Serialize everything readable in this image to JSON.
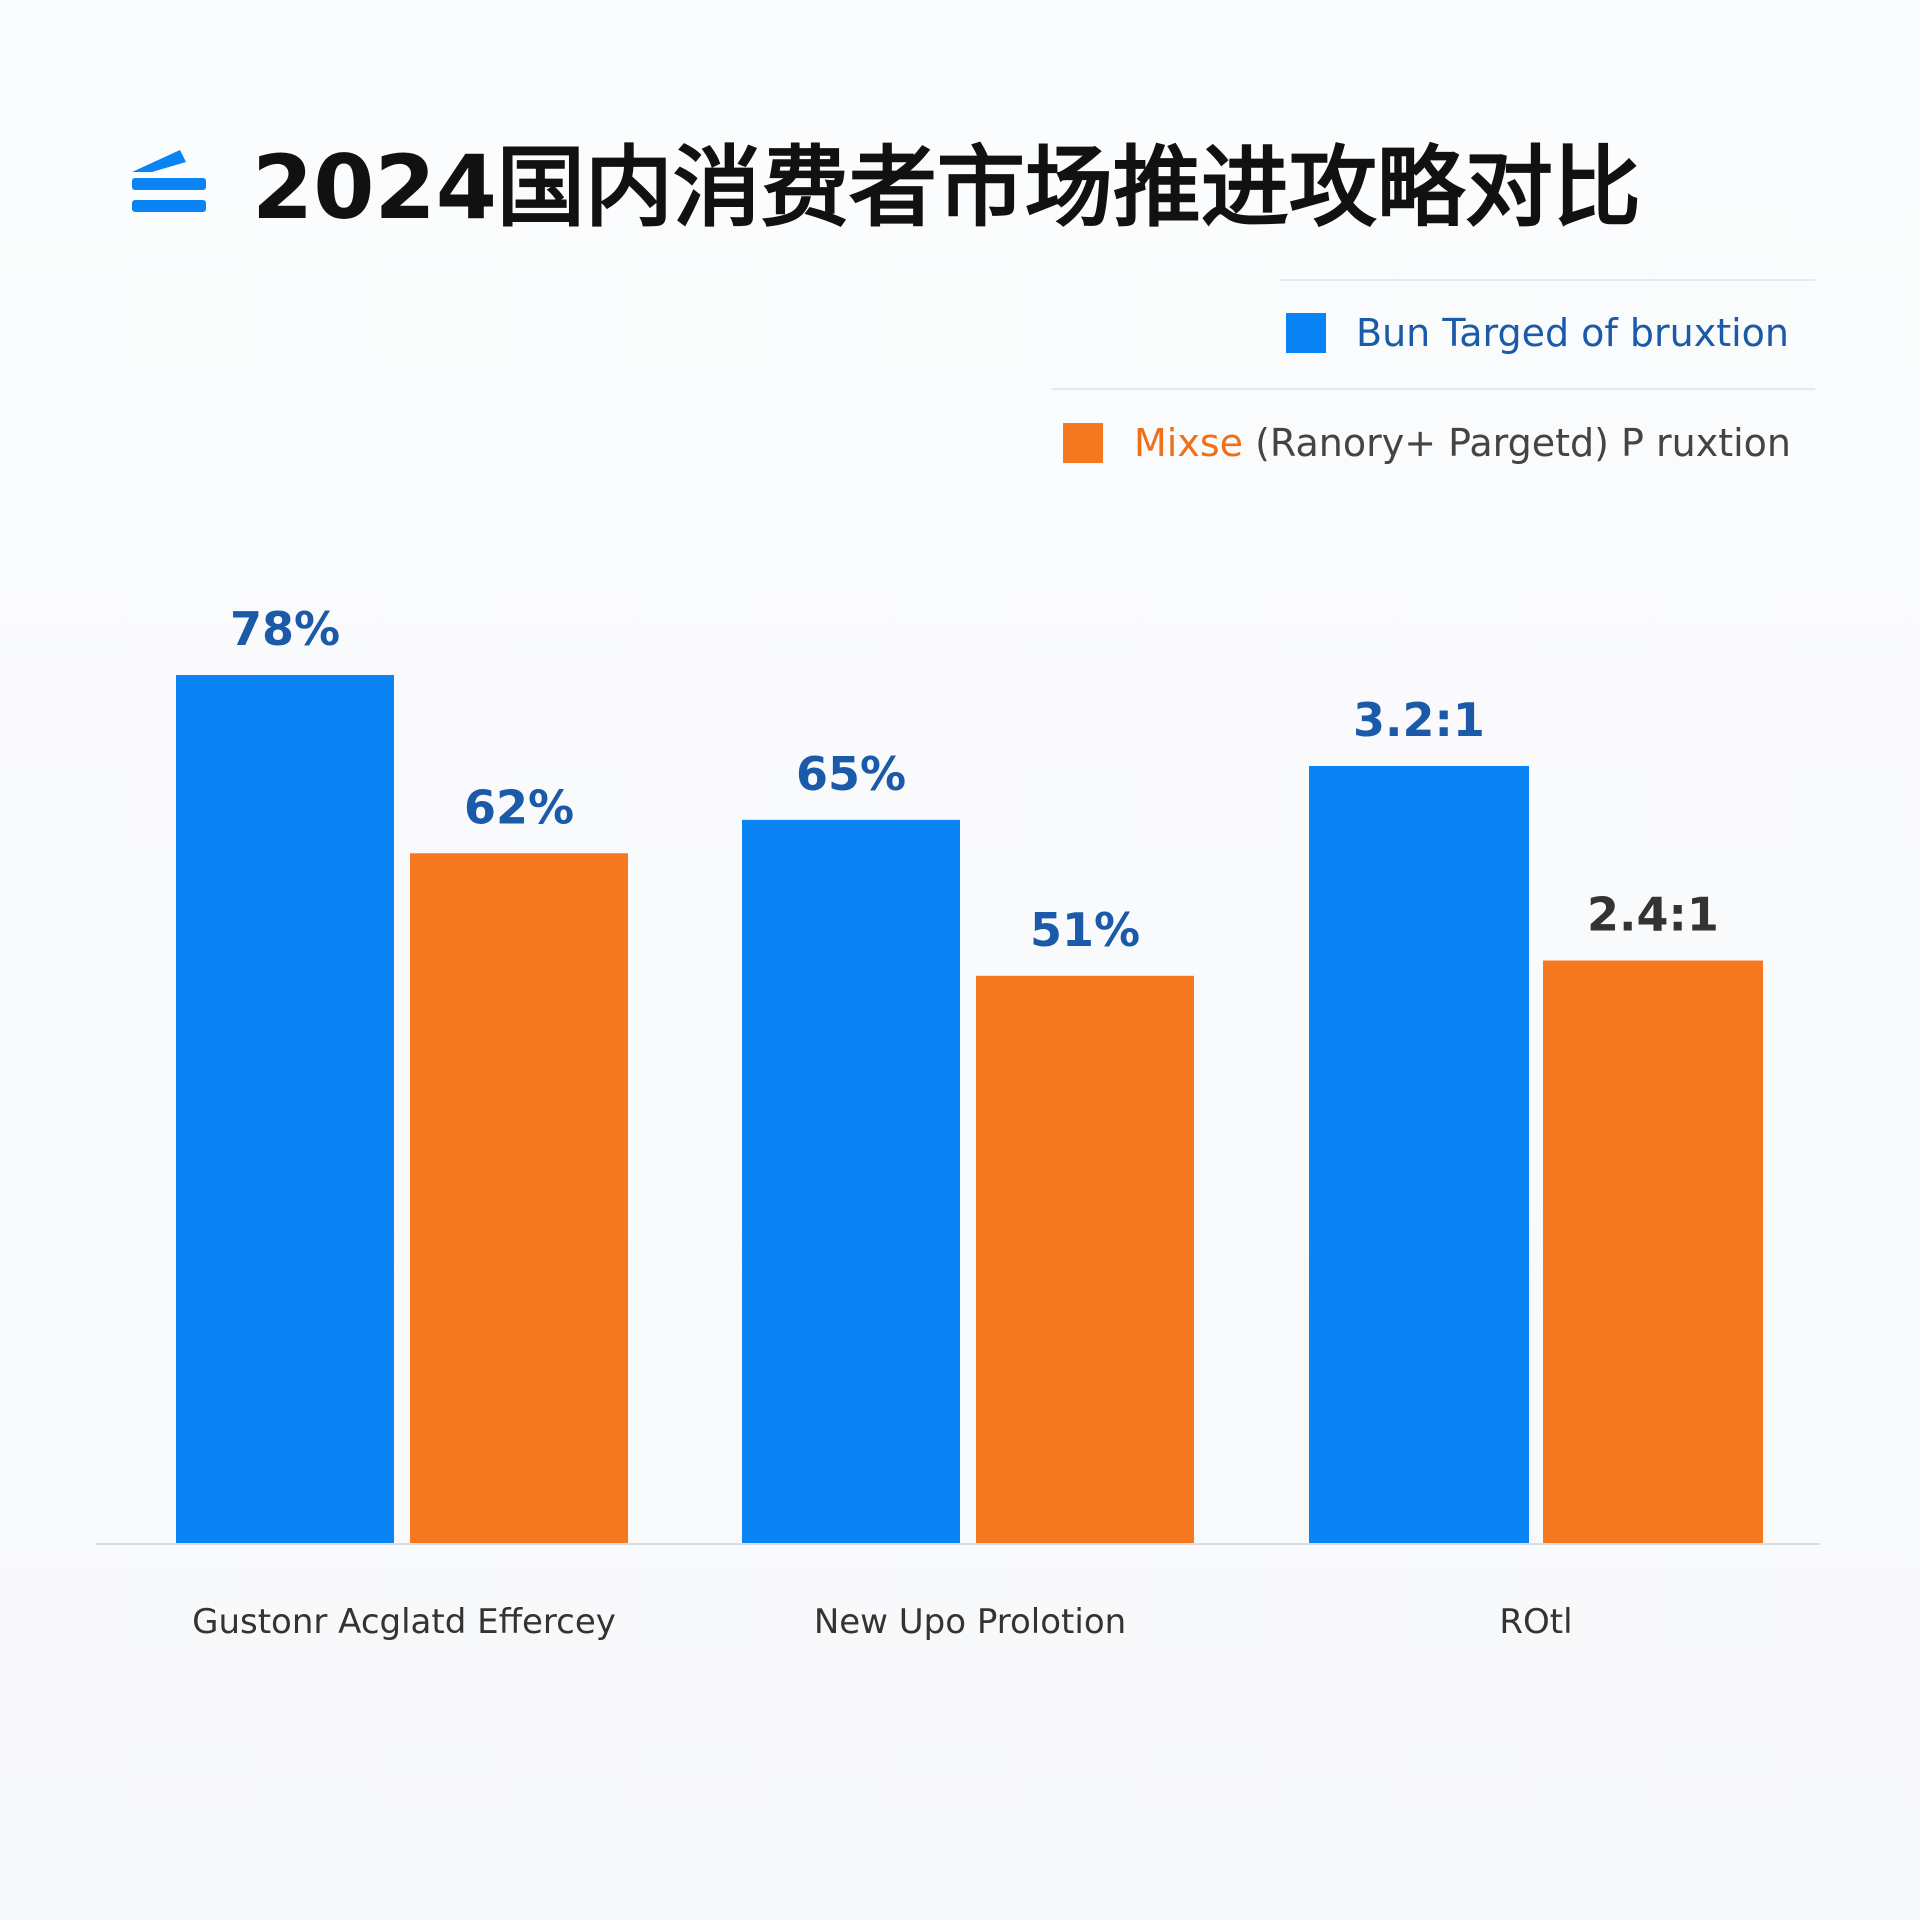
{
  "colors": {
    "series_a": "#0a84f5",
    "series_b": "#f5781e",
    "label_blue": "#1a5aa8",
    "label_dark": "#333333",
    "legend_b_text": "#f07018",
    "legend_b_rest": "#444444",
    "baseline": "#d9dde2",
    "legend_divider": "#e6e9ed"
  },
  "chart_data": {
    "type": "bar",
    "title": "2024国内消费者市场推进攻略对比",
    "title_icon": "layers-icon",
    "categories": [
      "Gustonr Acglatd Effercey",
      "New Upo Prolotion",
      "ROtl"
    ],
    "series": [
      {
        "name": "Bun Targed of bruxtion",
        "values": [
          78,
          65,
          3.2
        ],
        "labels": [
          "78%",
          "65%",
          "3.2:1"
        ]
      },
      {
        "name_main": "Mixse",
        "name_rest": " (Ranory+ Pargetd) P ruxtion",
        "values": [
          62,
          51,
          2.4
        ],
        "labels": [
          "62%",
          "51%",
          "2.4:1"
        ]
      }
    ],
    "ylim": [
      0,
      100
    ],
    "roi_ylim": [
      0,
      4.1
    ],
    "legend_position": "top-right",
    "grid": false
  }
}
